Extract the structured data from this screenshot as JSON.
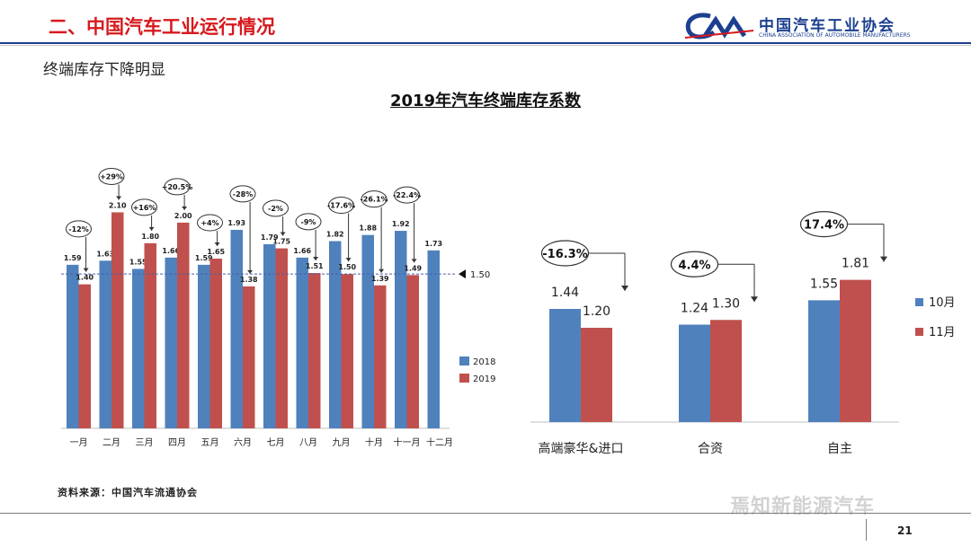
{
  "header": {
    "title": "二、中国汽车工业运行情况",
    "logo_cn": "中国汽车工业协会",
    "logo_en": "CHINA ASSOCIATION OF AUTOMOBILE MANUFACTURERS"
  },
  "subtitle": "终端库存下降明显",
  "chart_title": "2019年汽车终端库存系数",
  "source": "资料来源：中国汽车流通协会",
  "page_number": "21",
  "watermark": "焉知新能源汽车",
  "colors": {
    "blue": "#4f81bd",
    "red": "#c0504d"
  },
  "chart_data": [
    {
      "type": "bar",
      "categories": [
        "一月",
        "二月",
        "三月",
        "四月",
        "五月",
        "六月",
        "七月",
        "八月",
        "九月",
        "十月",
        "十一月",
        "十二月"
      ],
      "series": [
        {
          "name": "2018",
          "values": [
            1.59,
            1.63,
            1.55,
            1.66,
            1.59,
            1.93,
            1.79,
            1.66,
            1.82,
            1.88,
            1.92,
            1.73
          ]
        },
        {
          "name": "2019",
          "values": [
            1.4,
            2.1,
            1.8,
            2.0,
            1.65,
            1.38,
            1.75,
            1.51,
            1.5,
            1.39,
            1.49,
            null
          ]
        }
      ],
      "change_labels": [
        "-12%",
        "+29%",
        "+16%",
        "+20.5%",
        "+4%",
        "-28%",
        "-2%",
        "-9%",
        "-17.6%",
        "-26.1%",
        "-22.4%",
        ""
      ],
      "reference_line": {
        "value": 1.5,
        "label": "1.50"
      },
      "ylim": [
        0,
        2.2
      ],
      "legend": "right"
    },
    {
      "type": "bar",
      "categories": [
        "高端豪华&进口",
        "合资",
        "自主"
      ],
      "series": [
        {
          "name": "10月",
          "values": [
            1.44,
            1.24,
            1.55
          ]
        },
        {
          "name": "11月",
          "values": [
            1.2,
            1.3,
            1.81
          ]
        }
      ],
      "change_labels": [
        "-16.3%",
        "4.4%",
        "17.4%"
      ],
      "ylim": [
        0,
        2.0
      ],
      "legend": "right"
    }
  ]
}
